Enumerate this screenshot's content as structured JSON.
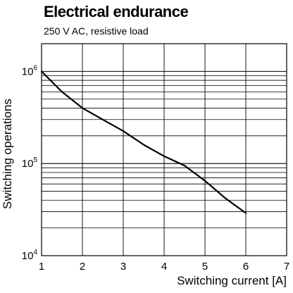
{
  "chart_data": {
    "type": "line",
    "title": "Electrical endurance",
    "subtitle": "250 V AC, resistive load",
    "xlabel": "Switching current [A]",
    "ylabel": "Switching operations",
    "x_scale": "linear",
    "y_scale": "log",
    "xlim": [
      1,
      7
    ],
    "ylim": [
      10000,
      2000000
    ],
    "x_ticks": [
      "1",
      "2",
      "3",
      "4",
      "5",
      "6",
      "7"
    ],
    "y_ticks": [
      {
        "base": "10",
        "exp": "4",
        "value": 10000
      },
      {
        "base": "10",
        "exp": "5",
        "value": 100000
      },
      {
        "base": "10",
        "exp": "6",
        "value": 1000000
      }
    ],
    "grid": true,
    "series": [
      {
        "x": [
          1,
          1.5,
          2,
          2.5,
          3,
          3.5,
          4,
          4.5,
          5,
          5.5,
          6
        ],
        "y": [
          1000000,
          600000,
          400000,
          300000,
          225000,
          160000,
          120000,
          95000,
          65000,
          42000,
          29000
        ]
      }
    ]
  }
}
